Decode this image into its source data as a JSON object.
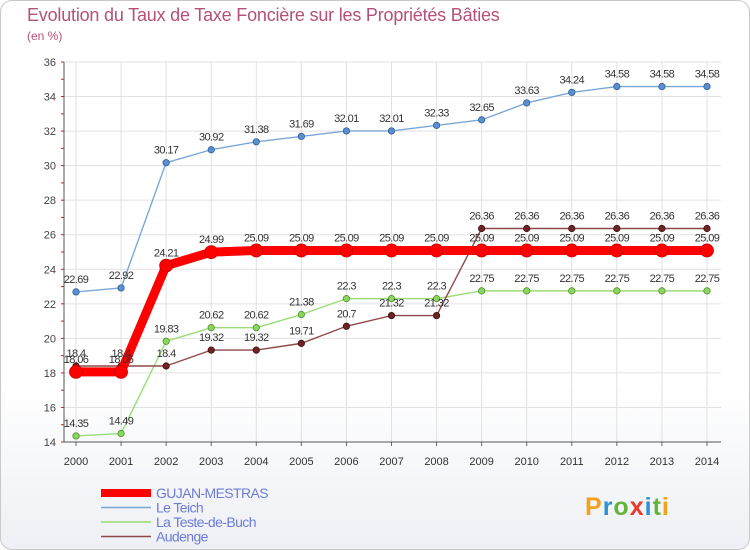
{
  "title": "Evolution du Taux de Taxe Foncière sur les Propriétés Bâties",
  "unit_label": "(en %)",
  "chart_data": {
    "type": "line",
    "title": "Evolution du Taux de Taxe Foncière sur les Propriétés Bâties",
    "ylabel": "(en %)",
    "xlabel": "",
    "ylim": [
      14,
      36
    ],
    "yticks": [
      14,
      16,
      18,
      20,
      22,
      24,
      26,
      28,
      30,
      32,
      34,
      36
    ],
    "x": [
      "2000",
      "2001",
      "2002",
      "2003",
      "2004",
      "2005",
      "2006",
      "2007",
      "2008",
      "2009",
      "2010",
      "2011",
      "2012",
      "2013",
      "2014"
    ],
    "series": [
      {
        "name": "GUJAN-MESTRAS",
        "color": "#ff0000",
        "values": [
          18.06,
          18.06,
          24.21,
          24.99,
          25.09,
          25.09,
          25.09,
          25.09,
          25.09,
          25.09,
          25.09,
          25.09,
          25.09,
          25.09,
          25.09
        ],
        "labels": [
          "18.06",
          "18.06",
          "24.21",
          "24.99",
          "25.09",
          "25.09",
          "25.09",
          "25.09",
          "25.09",
          "25.09",
          "25.09",
          "25.09",
          "25.09",
          "25.09",
          "25.09"
        ]
      },
      {
        "name": "Le Teich",
        "color": "#7ba7d7",
        "values": [
          22.69,
          22.92,
          30.17,
          30.92,
          31.38,
          31.69,
          32.01,
          32.01,
          32.33,
          32.65,
          33.63,
          34.24,
          34.58,
          34.58,
          34.58
        ],
        "labels": [
          "22.69",
          "22.92",
          "30.17",
          "30.92",
          "31.38",
          "31.69",
          "32.01",
          "32.01",
          "32.33",
          "32.65",
          "33.63",
          "34.24",
          "34.58",
          "34.58",
          "34.58"
        ]
      },
      {
        "name": "La Teste-de-Buch",
        "color": "#99dd77",
        "values": [
          14.35,
          14.49,
          19.83,
          20.62,
          20.62,
          21.38,
          22.3,
          22.3,
          22.3,
          22.75,
          22.75,
          22.75,
          22.75,
          22.75,
          22.75
        ],
        "labels": [
          "14.35",
          "14.49",
          "19.83",
          "20.62",
          "20.62",
          "21.38",
          "22.3",
          "22.3",
          "22.3",
          "22.75",
          "22.75",
          "22.75",
          "22.75",
          "22.75",
          "22.75"
        ]
      },
      {
        "name": "Audenge",
        "color": "#8e4848",
        "values": [
          18.4,
          18.4,
          18.4,
          19.32,
          19.32,
          19.71,
          20.7,
          21.32,
          21.32,
          26.36,
          26.36,
          26.36,
          26.36,
          26.36,
          26.36
        ],
        "labels": [
          "18.4",
          "18.4",
          "18.4",
          "19.32",
          "19.32",
          "19.71",
          "20.7",
          "21.32",
          "21.32",
          "26.36",
          "26.36",
          "26.36",
          "26.36",
          "26.36",
          "26.36"
        ]
      }
    ]
  },
  "logo": {
    "text": "Proxiti",
    "letter_colors": [
      "#f5a01a",
      "#2c90d6",
      "#62b53a",
      "#e83b2a",
      "#2c90d6",
      "#62b53a",
      "#f5a01a"
    ]
  }
}
